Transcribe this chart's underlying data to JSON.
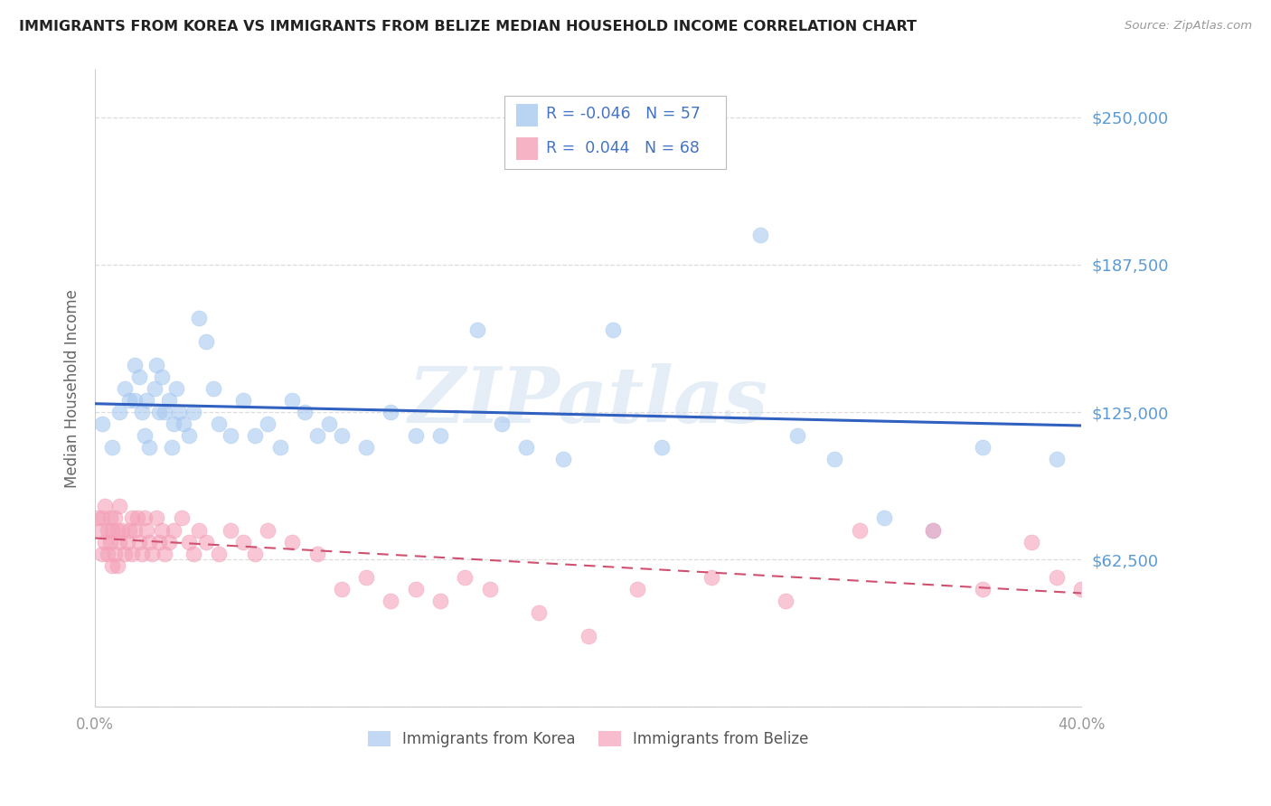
{
  "title": "IMMIGRANTS FROM KOREA VS IMMIGRANTS FROM BELIZE MEDIAN HOUSEHOLD INCOME CORRELATION CHART",
  "source": "Source: ZipAtlas.com",
  "ylabel": "Median Household Income",
  "xlim": [
    0.0,
    0.4
  ],
  "ylim": [
    0,
    270000
  ],
  "yticks": [
    0,
    62500,
    125000,
    187500,
    250000
  ],
  "ytick_labels": [
    "",
    "$62,500",
    "$125,000",
    "$187,500",
    "$250,000"
  ],
  "xticks": [
    0.0,
    0.08,
    0.16,
    0.24,
    0.32,
    0.4
  ],
  "xtick_labels": [
    "0.0%",
    "",
    "",
    "",
    "",
    "40.0%"
  ],
  "korea_color": "#A8C8F0",
  "belize_color": "#F4A0B8",
  "korea_line_color": "#3060C0",
  "belize_line_color": "#D05070",
  "right_label_color": "#5B9BD5",
  "legend_korea_R": "-0.046",
  "legend_korea_N": "57",
  "legend_belize_R": "0.044",
  "legend_belize_N": "68",
  "watermark": "ZIPatlas",
  "korea_x": [
    0.003,
    0.007,
    0.01,
    0.012,
    0.014,
    0.016,
    0.016,
    0.018,
    0.019,
    0.02,
    0.021,
    0.022,
    0.024,
    0.025,
    0.026,
    0.027,
    0.028,
    0.03,
    0.031,
    0.032,
    0.033,
    0.034,
    0.036,
    0.038,
    0.04,
    0.042,
    0.045,
    0.048,
    0.05,
    0.055,
    0.06,
    0.065,
    0.07,
    0.075,
    0.08,
    0.085,
    0.09,
    0.095,
    0.1,
    0.11,
    0.12,
    0.13,
    0.14,
    0.155,
    0.165,
    0.175,
    0.19,
    0.21,
    0.23,
    0.25,
    0.27,
    0.285,
    0.3,
    0.32,
    0.34,
    0.36,
    0.39
  ],
  "korea_y": [
    120000,
    110000,
    125000,
    135000,
    130000,
    145000,
    130000,
    140000,
    125000,
    115000,
    130000,
    110000,
    135000,
    145000,
    125000,
    140000,
    125000,
    130000,
    110000,
    120000,
    135000,
    125000,
    120000,
    115000,
    125000,
    165000,
    155000,
    135000,
    120000,
    115000,
    130000,
    115000,
    120000,
    110000,
    130000,
    125000,
    115000,
    120000,
    115000,
    110000,
    125000,
    115000,
    115000,
    160000,
    120000,
    110000,
    105000,
    160000,
    110000,
    240000,
    200000,
    115000,
    105000,
    80000,
    75000,
    110000,
    105000
  ],
  "belize_x": [
    0.001,
    0.002,
    0.003,
    0.003,
    0.004,
    0.004,
    0.005,
    0.005,
    0.006,
    0.006,
    0.007,
    0.007,
    0.008,
    0.008,
    0.009,
    0.009,
    0.01,
    0.01,
    0.011,
    0.012,
    0.013,
    0.014,
    0.015,
    0.015,
    0.016,
    0.017,
    0.018,
    0.019,
    0.02,
    0.021,
    0.022,
    0.023,
    0.025,
    0.026,
    0.027,
    0.028,
    0.03,
    0.032,
    0.035,
    0.038,
    0.04,
    0.042,
    0.045,
    0.05,
    0.055,
    0.06,
    0.065,
    0.07,
    0.08,
    0.09,
    0.1,
    0.11,
    0.12,
    0.13,
    0.14,
    0.15,
    0.16,
    0.18,
    0.2,
    0.22,
    0.25,
    0.28,
    0.31,
    0.34,
    0.36,
    0.38,
    0.39,
    0.4
  ],
  "belize_y": [
    80000,
    75000,
    65000,
    80000,
    85000,
    70000,
    75000,
    65000,
    80000,
    70000,
    75000,
    60000,
    80000,
    65000,
    75000,
    60000,
    85000,
    70000,
    75000,
    65000,
    70000,
    75000,
    80000,
    65000,
    75000,
    80000,
    70000,
    65000,
    80000,
    75000,
    70000,
    65000,
    80000,
    70000,
    75000,
    65000,
    70000,
    75000,
    80000,
    70000,
    65000,
    75000,
    70000,
    65000,
    75000,
    70000,
    65000,
    75000,
    70000,
    65000,
    50000,
    55000,
    45000,
    50000,
    45000,
    55000,
    50000,
    40000,
    30000,
    50000,
    55000,
    45000,
    75000,
    75000,
    50000,
    70000,
    55000,
    50000
  ]
}
